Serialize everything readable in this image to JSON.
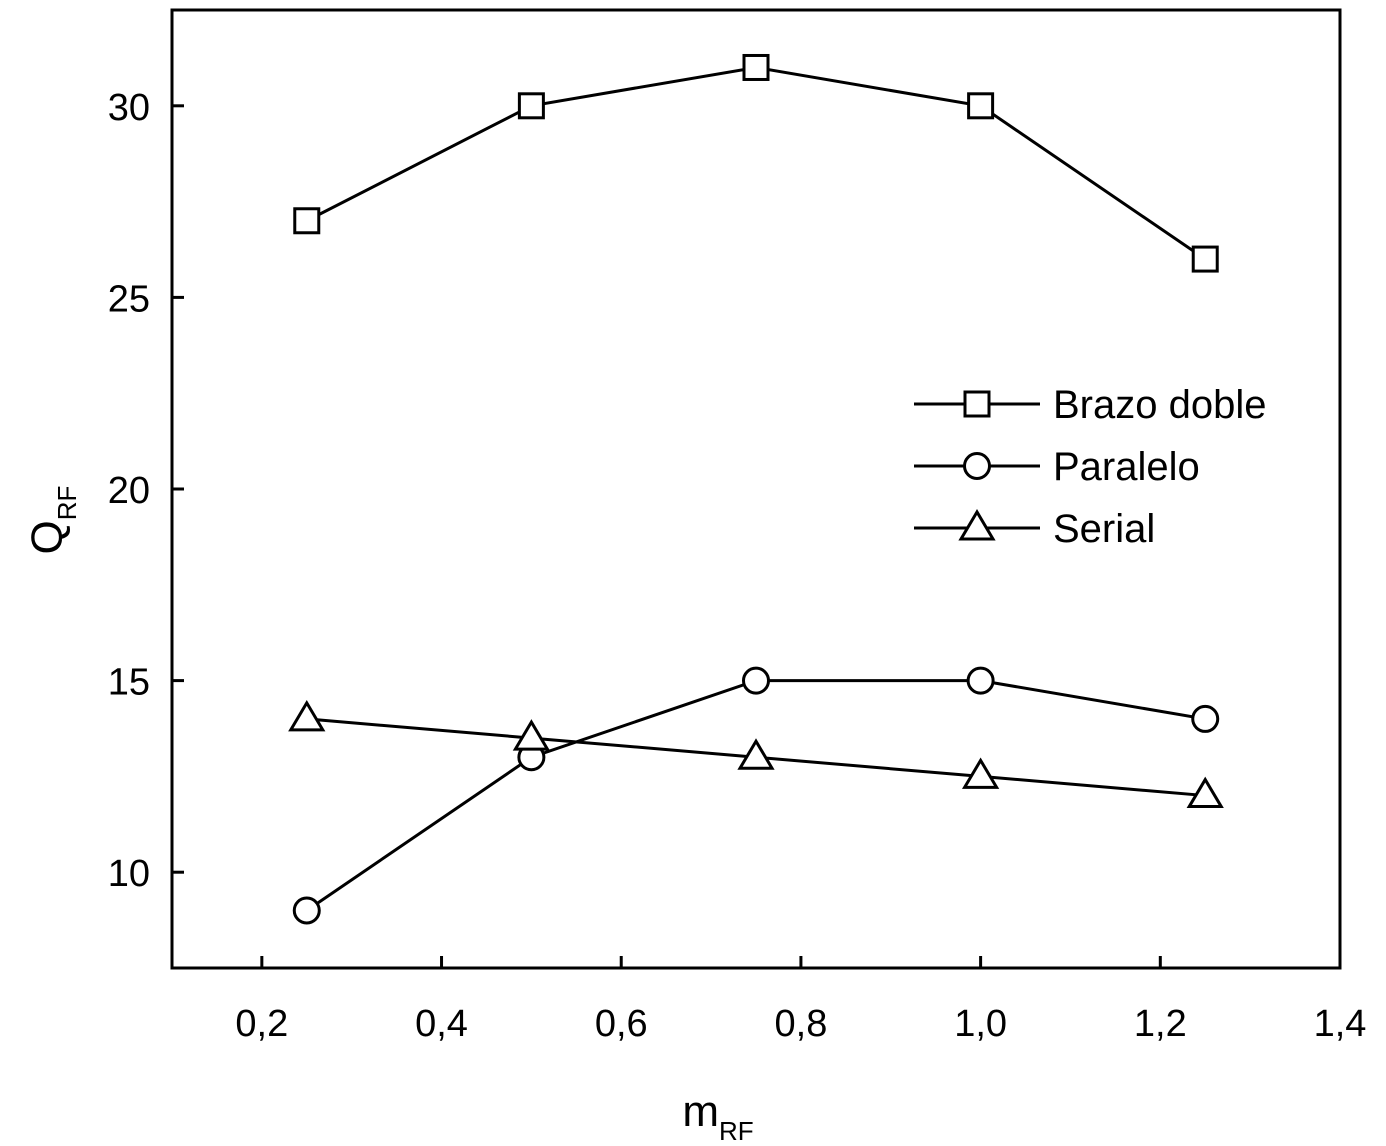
{
  "chart_data": {
    "type": "line",
    "xlabel": {
      "main": "m",
      "sub": "RF"
    },
    "ylabel": {
      "main": "Q",
      "sub": "RF"
    },
    "xlim": [
      0.1,
      1.4
    ],
    "ylim": [
      7.5,
      32.5
    ],
    "xticks": [
      0.2,
      0.4,
      0.6,
      0.8,
      1.0,
      1.2,
      1.4
    ],
    "xtick_labels": [
      "0,2",
      "0,4",
      "0,6",
      "0,8",
      "1,0",
      "1,2",
      "1,4"
    ],
    "yticks": [
      10,
      15,
      20,
      25,
      30
    ],
    "ytick_labels": [
      "10",
      "15",
      "20",
      "25",
      "30"
    ],
    "grid": false,
    "legend_position": "right",
    "x": [
      0.25,
      0.5,
      0.75,
      1.0,
      1.25
    ],
    "series": [
      {
        "name": "Brazo doble",
        "marker": "square",
        "values": [
          27,
          30,
          31,
          30,
          26
        ]
      },
      {
        "name": "Paralelo",
        "marker": "circle",
        "values": [
          9,
          13,
          15,
          15,
          14
        ]
      },
      {
        "name": "Serial",
        "marker": "triangle",
        "values": [
          14,
          13.5,
          13,
          12.5,
          12
        ]
      }
    ]
  }
}
